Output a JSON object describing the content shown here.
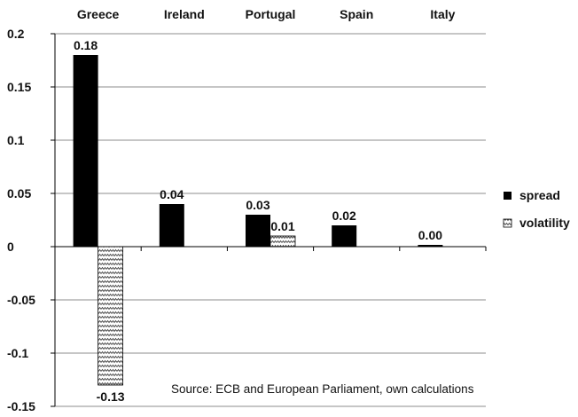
{
  "chart_data": {
    "type": "bar",
    "categories": [
      "Greece",
      "Ireland",
      "Portugal",
      "Spain",
      "Italy"
    ],
    "series": [
      {
        "name": "spread",
        "values": [
          0.18,
          0.04,
          0.03,
          0.02,
          0.0
        ],
        "data_labels": [
          "0.18",
          "0.04",
          "0.03",
          "0.02",
          "0.00"
        ],
        "color": "#000000"
      },
      {
        "name": "volatility",
        "values": [
          -0.13,
          null,
          0.01,
          null,
          null
        ],
        "data_labels": [
          "-0.13",
          null,
          "0.01",
          null,
          null
        ],
        "pattern": "zigzag"
      }
    ],
    "ylim": [
      -0.15,
      0.2
    ],
    "yticks": [
      0.2,
      0.15,
      0.1,
      0.05,
      0,
      -0.05,
      -0.1,
      -0.15
    ],
    "ytick_labels": [
      "0.2",
      "0.15",
      "0.1",
      "0.05",
      "0",
      "-0.05",
      "-0.1",
      "-0.15"
    ],
    "category_labels_position": "top",
    "grid": true,
    "legend": "right",
    "annotation": "Source: ECB and European Parliament, own calculations"
  }
}
